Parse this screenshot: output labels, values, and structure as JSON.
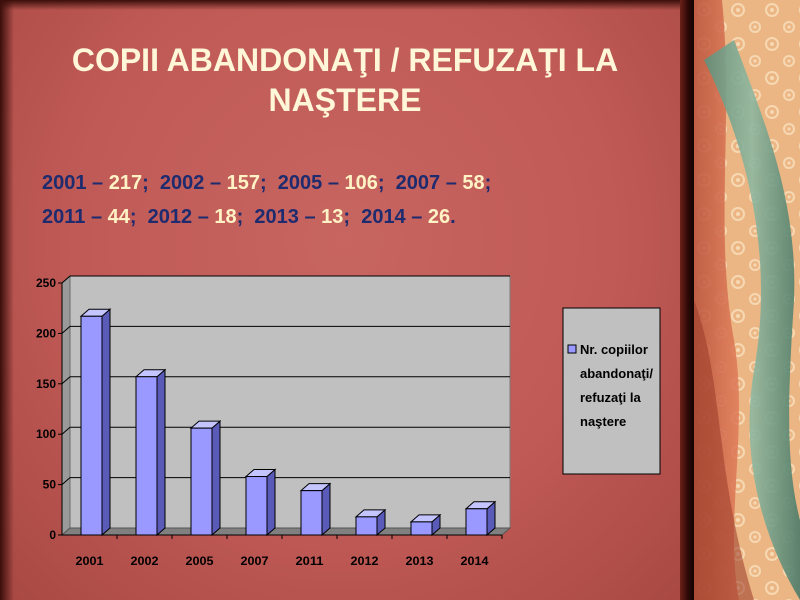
{
  "title": "COPII ABANDONAŢI / REFUZAŢI LA NAŞTERE",
  "values_text": {
    "line1": [
      {
        "year": "2001",
        "value": "217",
        "sep": ";"
      },
      {
        "year": "2002",
        "value": "157",
        "sep": ";"
      },
      {
        "year": "2005",
        "value": "106",
        "sep": ";"
      },
      {
        "year": "2007",
        "value": "58",
        "sep": ";"
      }
    ],
    "line2": [
      {
        "year": "2011",
        "value": "44",
        "sep": ";"
      },
      {
        "year": "2012",
        "value": "18",
        "sep": ";"
      },
      {
        "year": "2013",
        "value": "13",
        "sep": ";"
      },
      {
        "year": "2014",
        "value": "26",
        "sep": "."
      }
    ],
    "dash": "–"
  },
  "colors": {
    "bar_front": "#9999ff",
    "bar_side": "#5a5ab8",
    "bar_top": "#c4c4ff",
    "plot_bg": "#c0c0c0",
    "floor": "#808080",
    "accent_text": "#fff3c6",
    "dark_text": "#1e2b6e"
  },
  "chart_data": {
    "type": "bar",
    "categories": [
      "2001",
      "2002",
      "2005",
      "2007",
      "2011",
      "2012",
      "2013",
      "2014"
    ],
    "series": [
      {
        "name": "Nr. copiilor abandonaţi/ refuzaţi la naştere",
        "values": [
          217,
          157,
          106,
          58,
          44,
          18,
          13,
          26
        ]
      }
    ],
    "yticks": [
      "0",
      "50",
      "100",
      "150",
      "200",
      "250"
    ],
    "ylim": [
      0,
      250
    ],
    "legend_lines": [
      "Nr. copiilor",
      "abandonaţi/",
      "refuzaţi la",
      "naştere"
    ],
    "legend_position": "right",
    "grid": true
  }
}
